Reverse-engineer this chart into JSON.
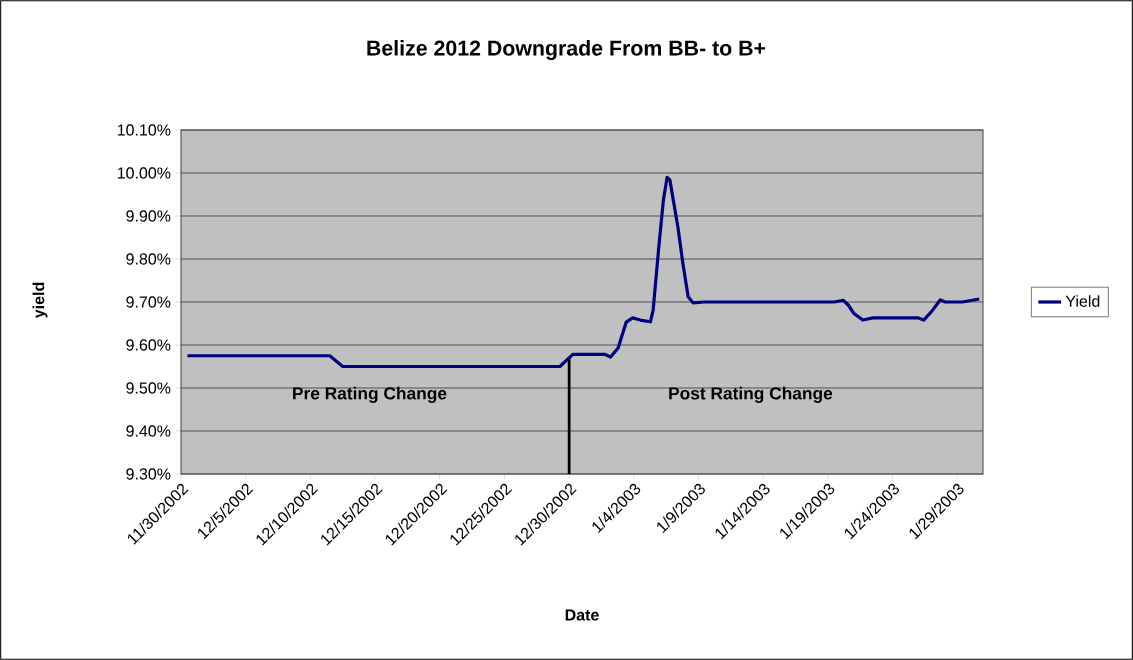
{
  "chart_data": {
    "type": "line",
    "title": "Belize 2012 Downgrade From BB- to B+",
    "xlabel": "Date",
    "ylabel": "yield",
    "x": [
      "2002-11-30T12:00",
      "2002-12-11T12:00",
      "2002-12-12T12:00",
      "2002-12-29T07:00",
      "2002-12-30T07:00",
      "2003-01-01T19:00",
      "2003-01-02T05:00",
      "2003-01-02T19:00",
      "2003-01-03T10:00",
      "2003-01-03T22:00",
      "2003-01-04T12:00",
      "2003-01-05T07:00",
      "2003-01-05T12:00",
      "2003-01-05T22:00",
      "2003-01-06T07:00",
      "2003-01-06T14:00",
      "2003-01-06T19:00",
      "2003-01-07T10:00",
      "2003-01-07T19:00",
      "2003-01-08T05:00",
      "2003-01-08T14:00",
      "2003-01-09T10:00",
      "2003-01-19T12:00",
      "2003-01-20T05:00",
      "2003-01-20T14:00",
      "2003-01-21",
      "2003-01-21T17:00",
      "2003-01-22T12:00",
      "2003-01-26",
      "2003-01-26T10:00",
      "2003-01-27",
      "2003-01-27T17:00",
      "2003-01-28T02:00",
      "2003-01-29T10:00",
      "2003-01-30T17:00"
    ],
    "series": [
      {
        "name": "Yield",
        "color": "#000080",
        "values": [
          9.575,
          9.575,
          9.55,
          9.55,
          9.578,
          9.578,
          9.572,
          9.593,
          9.653,
          9.663,
          9.658,
          9.654,
          9.681,
          9.821,
          9.937,
          9.99,
          9.984,
          9.874,
          9.791,
          9.712,
          9.698,
          9.7,
          9.7,
          9.704,
          9.693,
          9.674,
          9.658,
          9.663,
          9.663,
          9.658,
          9.677,
          9.705,
          9.7,
          9.7,
          9.707
        ]
      }
    ],
    "xlim": [
      "2002-11-30",
      "2003-01-31"
    ],
    "xticks": [
      {
        "value": "2002-11-30",
        "label": "11/30/2002"
      },
      {
        "value": "2002-12-05",
        "label": "12/5/2002"
      },
      {
        "value": "2002-12-10",
        "label": "12/10/2002"
      },
      {
        "value": "2002-12-15",
        "label": "12/15/2002"
      },
      {
        "value": "2002-12-20",
        "label": "12/20/2002"
      },
      {
        "value": "2002-12-25",
        "label": "12/25/2002"
      },
      {
        "value": "2002-12-30",
        "label": "12/30/2002"
      },
      {
        "value": "2003-01-04",
        "label": "1/4/2003"
      },
      {
        "value": "2003-01-09",
        "label": "1/9/2003"
      },
      {
        "value": "2003-01-14",
        "label": "1/14/2003"
      },
      {
        "value": "2003-01-19",
        "label": "1/19/2003"
      },
      {
        "value": "2003-01-24",
        "label": "1/24/2003"
      },
      {
        "value": "2003-01-29",
        "label": "1/29/2003"
      }
    ],
    "ylim": [
      9.3,
      10.1
    ],
    "yticks": [
      {
        "value": 9.3,
        "label": "9.30%"
      },
      {
        "value": 9.4,
        "label": "9.40%"
      },
      {
        "value": 9.5,
        "label": "9.50%"
      },
      {
        "value": 9.6,
        "label": "9.60%"
      },
      {
        "value": 9.7,
        "label": "9.70%"
      },
      {
        "value": 9.8,
        "label": "9.80%"
      },
      {
        "value": 9.9,
        "label": "9.90%"
      },
      {
        "value": 10.0,
        "label": "10.00%"
      },
      {
        "value": 10.1,
        "label": "10.10%"
      }
    ],
    "ref_lines": [
      {
        "axis": "x",
        "value": "2002-12-30",
        "color": "#000000"
      }
    ],
    "annotations": [
      "Pre Rating Change",
      "Post Rating Change"
    ],
    "grid": "y",
    "legend": "right",
    "marker": "none",
    "line_style": "solid"
  }
}
